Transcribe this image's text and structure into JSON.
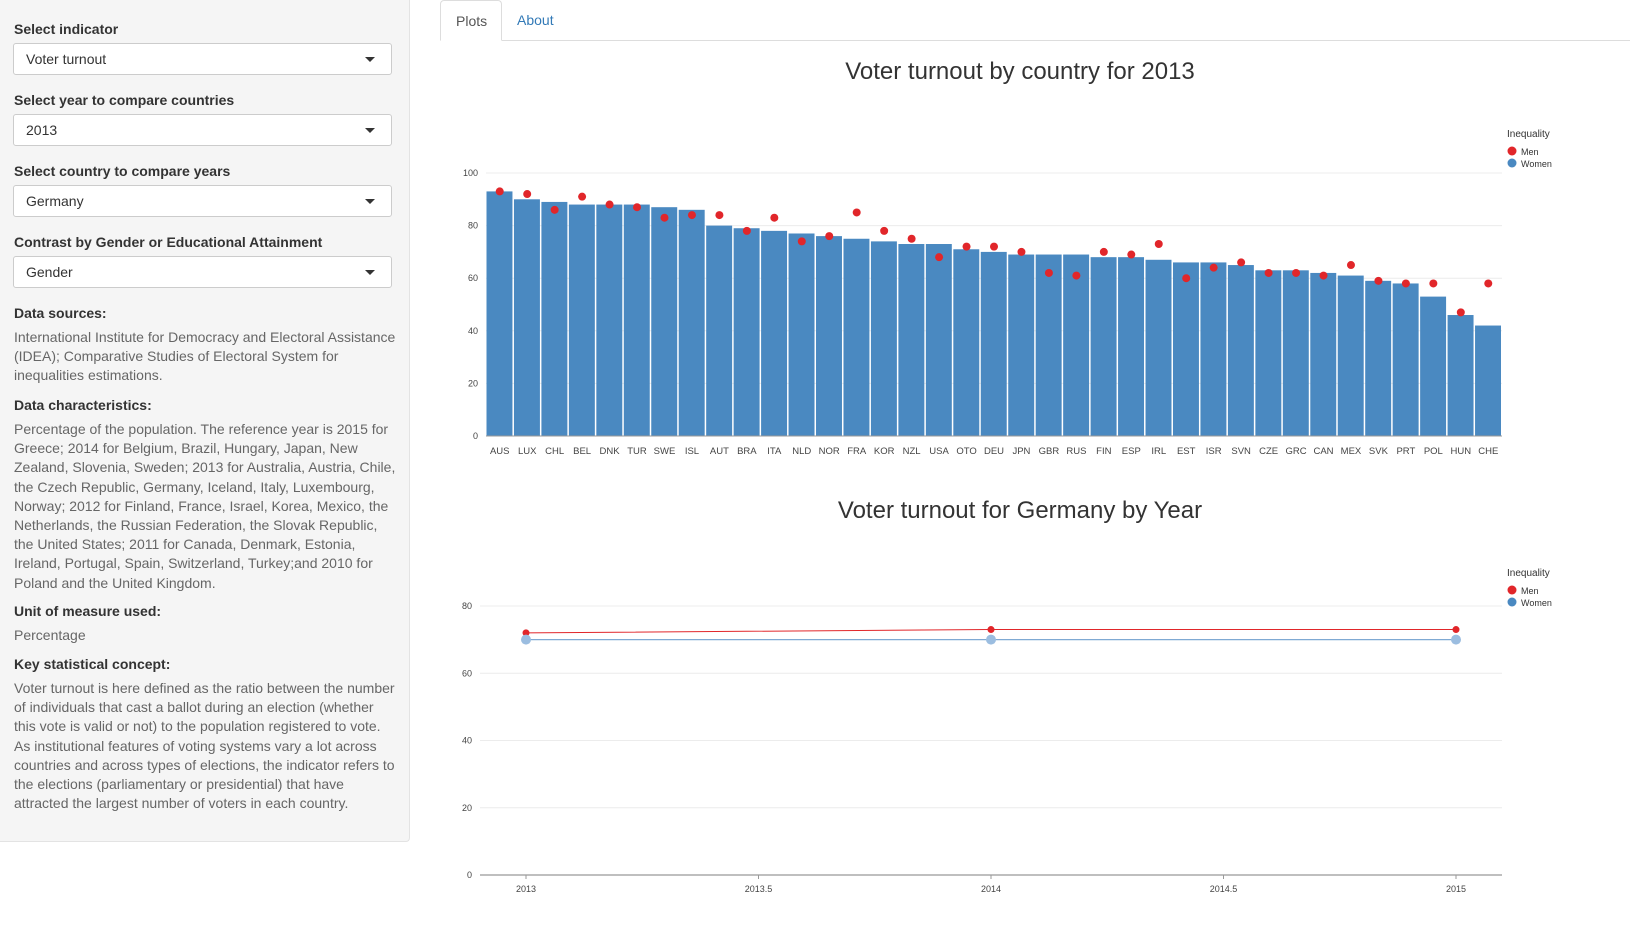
{
  "sidebar": {
    "indicator": {
      "label": "Select indicator",
      "value": "Voter turnout"
    },
    "year": {
      "label": "Select year to compare countries",
      "value": "2013"
    },
    "country": {
      "label": "Select country to compare years",
      "value": "Germany"
    },
    "contrast": {
      "label": "Contrast by Gender or Educational Attainment",
      "value": "Gender"
    },
    "sources": {
      "heading": "Data sources:",
      "text": "International Institute for Democracy and Electoral Assistance (IDEA); Comparative Studies of Electoral System for inequalities estimations."
    },
    "characteristics": {
      "heading": "Data characteristics:",
      "text": "Percentage of the population. The reference year is 2015 for Greece; 2014 for Belgium, Brazil, Hungary, Japan, New Zealand, Slovenia, Sweden; 2013 for Australia, Austria, Chile, the Czech Republic, Germany, Iceland, Italy, Luxembourg, Norway; 2012 for Finland, France, Israel, Korea, Mexico, the Netherlands, the Russian Federation, the Slovak Republic, the United States; 2011 for Canada, Denmark, Estonia, Ireland, Portugal, Spain, Switzerland, Turkey;and 2010 for Poland and the United Kingdom."
    },
    "unit": {
      "heading": "Unit of measure used:",
      "text": "Percentage"
    },
    "concept": {
      "heading": "Key statistical concept:",
      "text": "Voter turnout is here defined as the ratio between the number of individuals that cast a ballot during an election (whether this vote is valid or not) to the population registered to vote. As institutional features of voting systems vary a lot across countries and across types of elections, the indicator refers to the elections (parliamentary or presidential) that have attracted the largest number of voters in each country."
    }
  },
  "tabs": [
    {
      "label": "Plots"
    },
    {
      "label": "About"
    }
  ],
  "colors": {
    "bar": "#4a89c1",
    "men": "#e1262a",
    "women_line": "#7fa9d3",
    "women_point": "#9bbde0"
  },
  "chart_data": [
    {
      "type": "bar",
      "title": "Voter turnout by country for 2013",
      "legend_title": "Inequality",
      "legend_position": "top-right",
      "categories": [
        "AUS",
        "LUX",
        "CHL",
        "BEL",
        "DNK",
        "TUR",
        "SWE",
        "ISL",
        "AUT",
        "BRA",
        "ITA",
        "NLD",
        "NOR",
        "FRA",
        "KOR",
        "NZL",
        "USA",
        "OTO",
        "DEU",
        "JPN",
        "GBR",
        "RUS",
        "FIN",
        "ESP",
        "IRL",
        "EST",
        "ISR",
        "SVN",
        "CZE",
        "GRC",
        "CAN",
        "MEX",
        "SVK",
        "PRT",
        "POL",
        "HUN",
        "CHE"
      ],
      "values": [
        93,
        90,
        89,
        88,
        88,
        88,
        87,
        86,
        80,
        79,
        78,
        77,
        76,
        75,
        74,
        73,
        73,
        71,
        70,
        69,
        69,
        69,
        68,
        68,
        67,
        66,
        66,
        65,
        63,
        63,
        62,
        61,
        59,
        58,
        53,
        46,
        42
      ],
      "series": [
        {
          "name": "Men",
          "values": [
            93,
            92,
            86,
            91,
            88,
            87,
            83,
            84,
            84,
            78,
            83,
            74,
            76,
            85,
            78,
            75,
            68,
            72,
            72,
            70,
            62,
            61,
            70,
            69,
            73,
            60,
            64,
            66,
            62,
            62,
            61,
            65,
            59,
            58,
            58,
            47,
            58
          ]
        }
      ],
      "ylim": [
        0,
        100
      ],
      "yticks": [
        0,
        20,
        40,
        60,
        80,
        100
      ],
      "legend": [
        "Men",
        "Women"
      ],
      "grid": true
    },
    {
      "type": "line",
      "title": "Voter turnout for Germany by Year",
      "legend_title": "Inequality",
      "legend_position": "top-right",
      "x": [
        2013,
        2014,
        2015
      ],
      "series": [
        {
          "name": "Men",
          "values": [
            72,
            73,
            73
          ]
        },
        {
          "name": "Women",
          "values": [
            70,
            70,
            70
          ]
        }
      ],
      "ylim": [
        0,
        85
      ],
      "yticks": [
        0,
        20,
        40,
        60,
        80
      ],
      "xticks": [
        "2013",
        "2013.5",
        "2014",
        "2014.5",
        "2015"
      ],
      "legend": [
        "Men",
        "Women"
      ],
      "grid": true
    }
  ]
}
